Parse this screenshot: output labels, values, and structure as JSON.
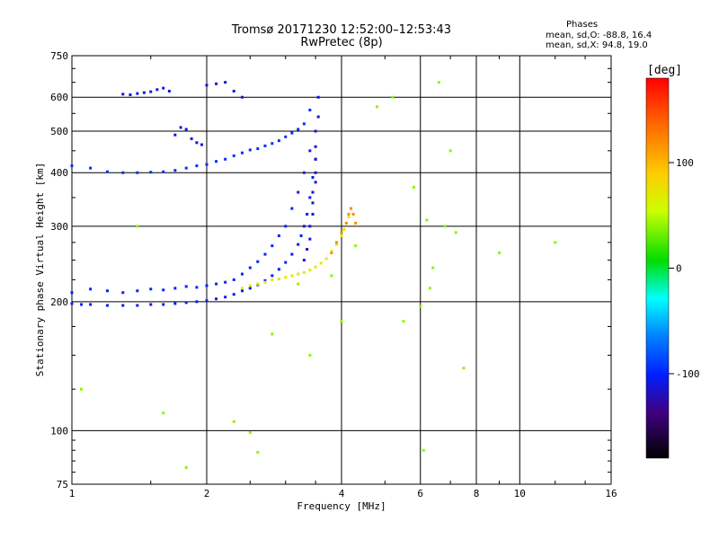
{
  "header": {
    "title": "Tromsø 20171230 12:52:00–12:53:43",
    "subtitle": "RwPretec (8p)"
  },
  "stats": {
    "heading": "Phases",
    "line_o": "mean, sd,O: -88.8, 16.4",
    "line_x": "mean, sd,X:  94.8, 19.0"
  },
  "chart_data": {
    "type": "scatter",
    "xlabel": "Frequency [MHz]",
    "ylabel": "Stationary phase Virtual Height [km]",
    "xscale": "log",
    "yscale": "log",
    "xlim": [
      1,
      16
    ],
    "ylim": [
      75,
      750
    ],
    "xticks": [
      1,
      2,
      4,
      6,
      8,
      10,
      16
    ],
    "xtick_labels": [
      "1",
      "2",
      "4",
      "6",
      "8",
      "10",
      "16"
    ],
    "yticks": [
      75,
      100,
      200,
      300,
      400,
      500,
      600,
      750
    ],
    "ytick_labels": [
      "75",
      "100",
      "200",
      "300",
      "400",
      "500",
      "600",
      "750"
    ],
    "grid": true,
    "colorbar": {
      "label": "[deg]",
      "range": [
        -180,
        180
      ],
      "ticks": [
        100,
        0,
        -100
      ],
      "tick_labels": [
        "100",
        "0",
        "-100"
      ]
    },
    "series": [
      {
        "trace": "O-mode F-layer lower trace",
        "phase_deg": -105,
        "x": [
          1.0,
          1.05,
          1.1,
          1.2,
          1.3,
          1.4,
          1.5,
          1.6,
          1.7,
          1.8,
          1.9,
          2.0,
          2.1,
          2.2,
          2.3,
          2.4,
          2.5,
          2.6,
          2.7,
          2.8,
          2.9,
          3.0,
          3.1,
          3.2,
          3.25,
          3.3,
          3.35,
          3.4,
          3.45,
          3.5
        ],
        "y": [
          198,
          197,
          197,
          196,
          196,
          196,
          197,
          197,
          198,
          199,
          200,
          201,
          203,
          205,
          208,
          212,
          215,
          219,
          224,
          230,
          238,
          247,
          258,
          272,
          285,
          300,
          320,
          350,
          390,
          430
        ]
      },
      {
        "trace": "O-mode F-layer upper trace",
        "phase_deg": -100,
        "x": [
          1.0,
          1.1,
          1.2,
          1.3,
          1.4,
          1.5,
          1.6,
          1.7,
          1.8,
          1.9,
          2.0,
          2.1,
          2.2,
          2.3,
          2.4,
          2.5,
          2.6,
          2.7,
          2.8,
          2.9,
          3.0,
          3.1,
          3.2,
          3.3,
          3.4
        ],
        "y": [
          210,
          214,
          212,
          210,
          212,
          214,
          213,
          215,
          217,
          216,
          218,
          220,
          222,
          225,
          232,
          240,
          248,
          258,
          270,
          285,
          300,
          330,
          360,
          400,
          450
        ]
      },
      {
        "trace": "O-mode cusp column",
        "phase_deg": -115,
        "x": [
          3.3,
          3.35,
          3.4,
          3.4,
          3.45,
          3.45,
          3.45,
          3.5,
          3.5,
          3.5,
          3.5,
          3.5,
          3.55,
          3.55
        ],
        "y": [
          250,
          265,
          280,
          300,
          320,
          340,
          360,
          380,
          400,
          430,
          460,
          500,
          540,
          600
        ]
      },
      {
        "trace": "multiple-hop trace",
        "phase_deg": -95,
        "x": [
          1.0,
          1.1,
          1.2,
          1.3,
          1.4,
          1.5,
          1.6,
          1.7,
          1.8,
          1.9,
          2.0,
          2.1,
          2.2,
          2.3,
          2.4,
          2.5,
          2.6,
          2.7,
          2.8,
          2.9,
          3.0,
          3.1,
          3.2,
          3.3,
          3.4
        ],
        "y": [
          415,
          410,
          402,
          400,
          400,
          401,
          402,
          405,
          410,
          415,
          418,
          425,
          430,
          438,
          445,
          452,
          455,
          462,
          468,
          475,
          485,
          495,
          505,
          520,
          560
        ]
      },
      {
        "trace": "X-mode trace",
        "phase_deg": 70,
        "x": [
          2.4,
          2.5,
          2.6,
          2.7,
          2.8,
          2.9,
          3.0,
          3.1,
          3.2,
          3.3,
          3.4,
          3.5,
          3.6,
          3.7,
          3.8,
          3.9,
          4.0,
          4.05,
          4.1,
          4.15,
          4.2
        ],
        "y": [
          215,
          218,
          220,
          222,
          225,
          226,
          228,
          230,
          232,
          234,
          237,
          241,
          246,
          252,
          262,
          272,
          285,
          295,
          305,
          315,
          330
        ]
      },
      {
        "trace": "X-mode cusp",
        "phase_deg": 120,
        "x": [
          3.8,
          3.9,
          4.0,
          4.1,
          4.15,
          4.2,
          4.25,
          4.3
        ],
        "y": [
          260,
          275,
          290,
          305,
          320,
          330,
          320,
          305
        ]
      },
      {
        "trace": "O-mode upper cluster",
        "phase_deg": -110,
        "x": [
          1.3,
          1.35,
          1.4,
          1.45,
          1.5,
          1.55,
          1.6,
          1.65,
          1.7,
          1.75,
          1.8,
          1.85,
          1.9,
          1.95,
          2.0,
          2.1,
          2.2,
          2.3,
          2.4
        ],
        "y": [
          610,
          608,
          612,
          615,
          618,
          625,
          630,
          620,
          490,
          510,
          505,
          480,
          470,
          465,
          640,
          645,
          650,
          620,
          600
        ]
      },
      {
        "trace": "scattered noise",
        "phase_deg": 40,
        "x": [
          1.05,
          1.4,
          1.6,
          1.8,
          2.3,
          2.5,
          2.6,
          2.8,
          3.2,
          3.4,
          3.8,
          4.0,
          4.3,
          4.8,
          5.2,
          5.5,
          5.8,
          6.0,
          6.1,
          6.2,
          6.3,
          6.4,
          6.6,
          6.8,
          7.0,
          7.2,
          7.5,
          9.0,
          12.0
        ],
        "y": [
          125,
          300,
          110,
          82,
          105,
          99,
          89,
          168,
          220,
          150,
          230,
          180,
          270,
          570,
          600,
          180,
          370,
          195,
          90,
          310,
          215,
          240,
          650,
          300,
          450,
          290,
          140,
          260,
          275
        ]
      }
    ]
  }
}
